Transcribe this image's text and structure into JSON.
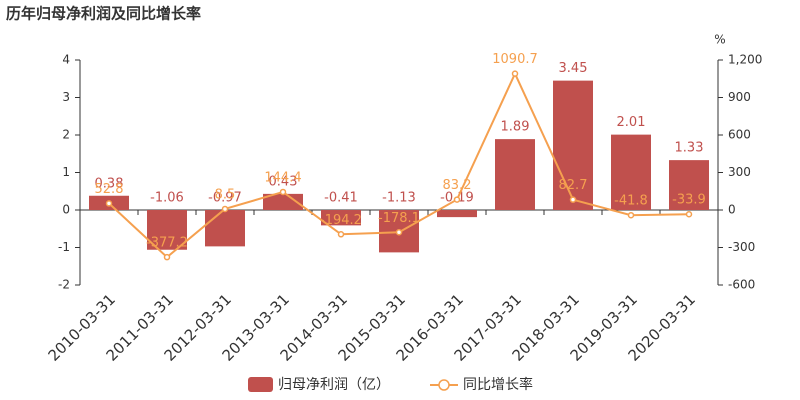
{
  "chart_data": {
    "type": "bar-line",
    "title": "历年归母净利润及同比增长率",
    "y2_unit": "%",
    "categories": [
      "2010-03-31",
      "2011-03-31",
      "2012-03-31",
      "2013-03-31",
      "2014-03-31",
      "2015-03-31",
      "2016-03-31",
      "2017-03-31",
      "2018-03-31",
      "2019-03-31",
      "2020-03-31"
    ],
    "series": [
      {
        "name": "归母净利润（亿）",
        "type": "bar",
        "color": "#c0504d",
        "values": [
          0.38,
          -1.06,
          -0.97,
          0.43,
          -0.41,
          -1.13,
          -0.19,
          1.89,
          3.45,
          2.01,
          1.33
        ]
      },
      {
        "name": "同比增长率",
        "type": "line",
        "axis": "y2",
        "color": "#f5a04f",
        "values": [
          52.8,
          -377.2,
          8.5,
          144.4,
          -194.2,
          -178.1,
          83.2,
          1090.7,
          82.7,
          -41.8,
          -33.9
        ]
      }
    ],
    "ylim": [
      -2,
      4
    ],
    "yticks": [
      -2,
      -1,
      0,
      1,
      2,
      3,
      4
    ],
    "y2lim": [
      -600,
      1200
    ],
    "y2ticks": [
      -600,
      -300,
      0,
      300,
      600,
      900,
      {
        "value": 1200,
        "label": "1,200"
      }
    ],
    "grid": false
  }
}
